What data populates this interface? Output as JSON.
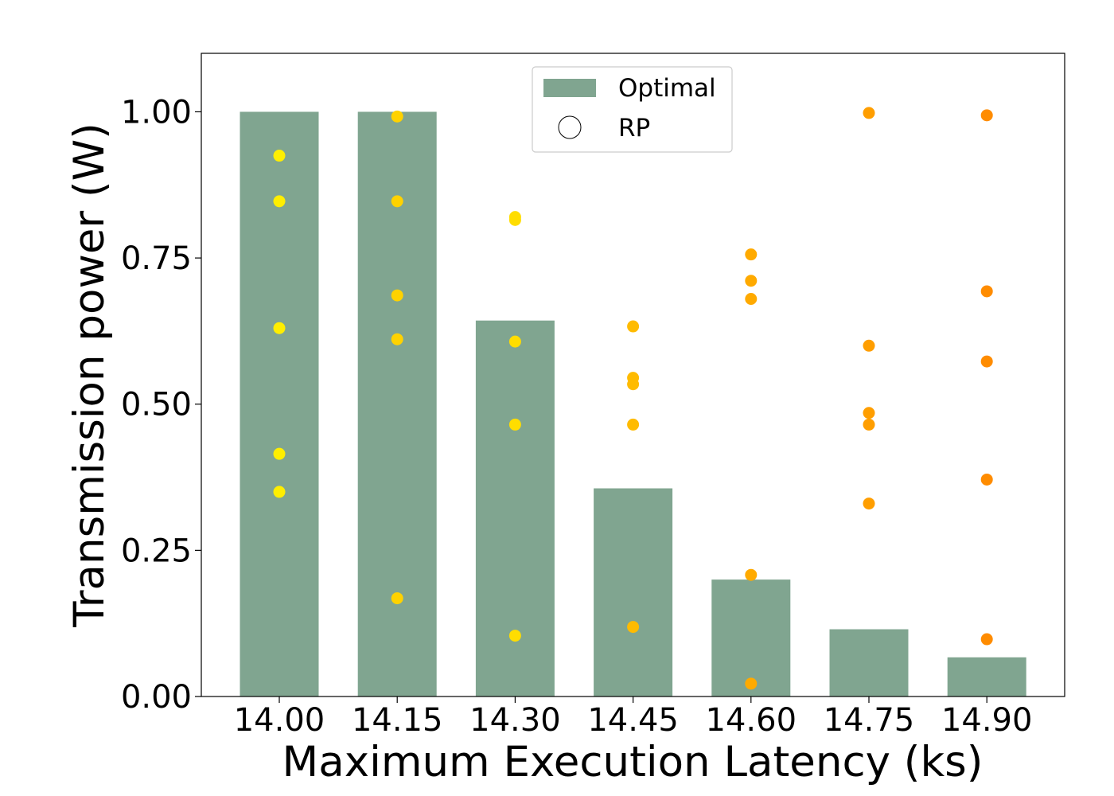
{
  "chart_data": {
    "type": "bar",
    "title": "",
    "xlabel": "Maximum Execution Latency (ks)",
    "ylabel": "Transmission power (W)",
    "categories": [
      "14.00",
      "14.15",
      "14.30",
      "14.45",
      "14.60",
      "14.75",
      "14.90"
    ],
    "ylim": [
      0,
      1.1
    ],
    "yticks": [
      0.0,
      0.25,
      0.5,
      0.75,
      1.0
    ],
    "ytick_labels": [
      "0.00",
      "0.25",
      "0.50",
      "0.75",
      "1.00"
    ],
    "grid": false,
    "legend_position": "top-center",
    "series": [
      {
        "name": "Optimal",
        "kind": "bar",
        "color": "#80a590",
        "values": [
          1.0,
          1.0,
          0.643,
          0.356,
          0.2,
          0.115,
          0.067
        ]
      },
      {
        "name": "RP",
        "kind": "scatter",
        "points": [
          {
            "category": "14.00",
            "values": [
              0.925,
              0.847,
              0.63,
              0.415,
              0.35
            ],
            "color": "#ffee00"
          },
          {
            "category": "14.15",
            "values": [
              0.992,
              0.847,
              0.686,
              0.611,
              0.168
            ],
            "color": "#ffd200"
          },
          {
            "category": "14.30",
            "values": [
              0.82,
              0.815,
              0.607,
              0.465,
              0.104
            ],
            "color": "#ffdd00"
          },
          {
            "category": "14.45",
            "values": [
              0.633,
              0.545,
              0.534,
              0.465,
              0.119
            ],
            "color": "#ffbb00"
          },
          {
            "category": "14.60",
            "values": [
              0.756,
              0.711,
              0.68,
              0.208,
              0.022
            ],
            "color": "#ffaa00"
          },
          {
            "category": "14.75",
            "values": [
              0.998,
              0.6,
              0.485,
              0.465,
              0.33
            ],
            "color": "#ff9e00"
          },
          {
            "category": "14.90",
            "values": [
              0.994,
              0.693,
              0.573,
              0.371,
              0.098
            ],
            "color": "#ff8c00"
          }
        ]
      }
    ]
  },
  "legend": {
    "items": [
      {
        "label": "Optimal",
        "swatch": "bar",
        "color": "#80a590"
      },
      {
        "label": "RP",
        "swatch": "circle",
        "color": "#ffffff"
      }
    ]
  }
}
